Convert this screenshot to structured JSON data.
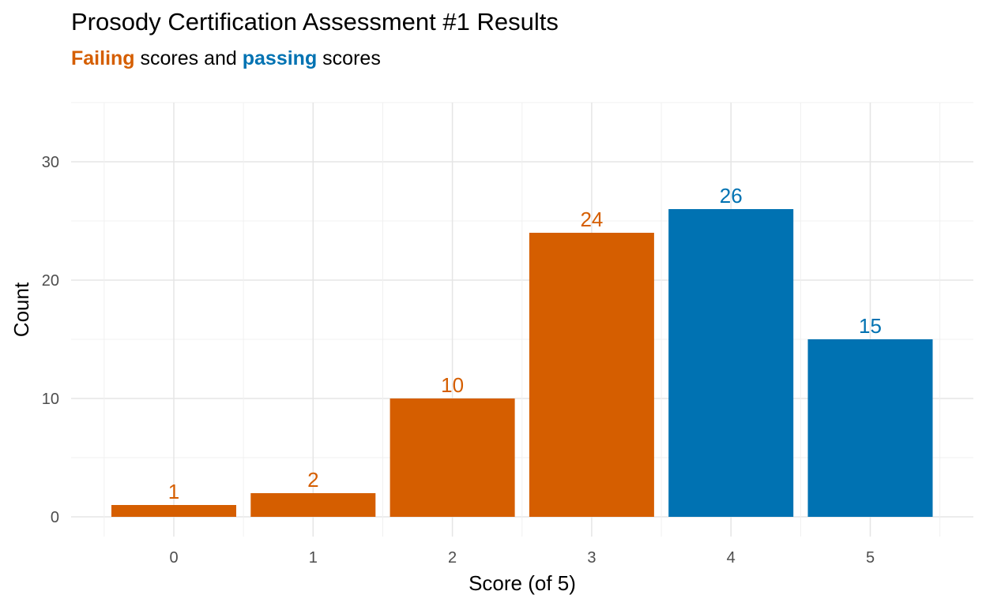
{
  "chart_data": {
    "type": "bar",
    "title": "Prosody Certification Assessment #1 Results",
    "subtitle": {
      "failing_word": "Failing",
      "middle_text": " scores and ",
      "passing_word": "passing",
      "end_text": " scores"
    },
    "xlabel": "Score (of 5)",
    "ylabel": "Count",
    "categories": [
      "0",
      "1",
      "2",
      "3",
      "4",
      "5"
    ],
    "values": [
      1,
      2,
      10,
      24,
      26,
      15
    ],
    "status": [
      "failing",
      "failing",
      "failing",
      "failing",
      "passing",
      "passing"
    ],
    "ylim": [
      0,
      35
    ],
    "y_ticks": [
      0,
      10,
      20,
      30
    ],
    "grid": true,
    "legend": "none",
    "colors": {
      "failing": "#D55E00",
      "passing": "#0072B2"
    }
  }
}
